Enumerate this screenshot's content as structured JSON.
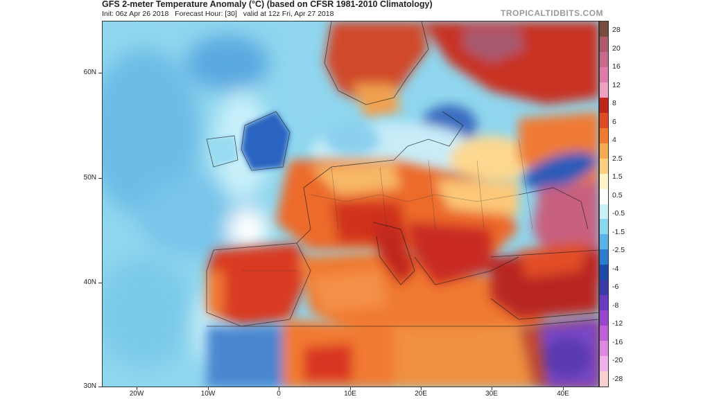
{
  "header": {
    "title": "GFS 2-meter Temperature Anomaly (°C) (based on CFSR 1981-2010 Climatology)",
    "subtitle": "Init: 06z Apr 26 2018   Forecast Hour: [30]   valid at 12z Fri, Apr 27 2018",
    "brand": "TROPICALTIDBITS.COM"
  },
  "map": {
    "lat_labels": [
      "60N",
      "50N",
      "40N",
      "30N"
    ],
    "lon_labels": [
      "20W",
      "10W",
      "0",
      "10E",
      "20E",
      "30E",
      "40E"
    ]
  },
  "colorbar": {
    "labels": [
      "28",
      "20",
      "16",
      "12",
      "8",
      "6",
      "4",
      "2.5",
      "1.5",
      "0.5",
      "-0.5",
      "-1.5",
      "-2.5",
      "-4",
      "-6",
      "-8",
      "-12",
      "-16",
      "-20",
      "-28"
    ],
    "colors": [
      "#7a4a3a",
      "#b05a6e",
      "#c86a8c",
      "#e07aa8",
      "#f0a0c0",
      "#c02418",
      "#e04a22",
      "#f07a30",
      "#f8aa50",
      "#fcd080",
      "#fff4c8",
      "#ffffff",
      "#c8f2f8",
      "#8ad8f0",
      "#58b4e8",
      "#2a7ccc",
      "#1c4ca8",
      "#3a3aa8",
      "#6a3ac0",
      "#9a46cc",
      "#c060d8",
      "#e088e0",
      "#f0b0ec",
      "#f8d0d0"
    ]
  }
}
